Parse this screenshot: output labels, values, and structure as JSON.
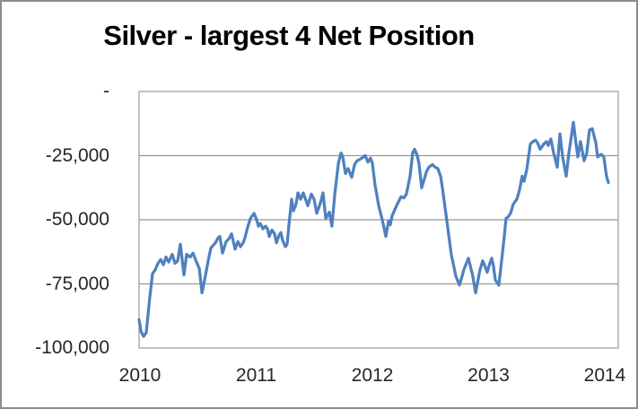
{
  "chart_data": {
    "type": "line",
    "title": "Silver - largest 4 Net Position",
    "xlabel": "",
    "ylabel": "",
    "x_ticks": [
      "2010",
      "2011",
      "2012",
      "2013",
      "2014"
    ],
    "x_tick_values": [
      2010,
      2011,
      2012,
      2013,
      2014
    ],
    "y_ticks": [
      "-",
      "-25,000",
      "-50,000",
      "-75,000",
      "-100,000"
    ],
    "y_tick_values": [
      0,
      -25000,
      -50000,
      -75000,
      -100000
    ],
    "x_range": [
      2009.992,
      2014.116
    ],
    "y_range": [
      -100000,
      0
    ],
    "grid": "horizontal",
    "legend": "none",
    "colors": {
      "line": "#4F81BD",
      "gridline": "#999999",
      "frame": "#8c8c8c",
      "text": "#262626",
      "title": "#000000"
    },
    "series": [
      {
        "name": "Largest 4 net position",
        "points": [
          [
            2009.992,
            -89000
          ],
          [
            2010.008,
            -93500
          ],
          [
            2010.031,
            -95500
          ],
          [
            2010.054,
            -94000
          ],
          [
            2010.085,
            -80000
          ],
          [
            2010.108,
            -71000
          ],
          [
            2010.131,
            -69500
          ],
          [
            2010.154,
            -67000
          ],
          [
            2010.178,
            -65500
          ],
          [
            2010.201,
            -67500
          ],
          [
            2010.224,
            -64500
          ],
          [
            2010.247,
            -66500
          ],
          [
            2010.278,
            -63500
          ],
          [
            2010.301,
            -67000
          ],
          [
            2010.324,
            -66000
          ],
          [
            2010.347,
            -59500
          ],
          [
            2010.378,
            -71500
          ],
          [
            2010.401,
            -63500
          ],
          [
            2010.432,
            -64500
          ],
          [
            2010.456,
            -63000
          ],
          [
            2010.486,
            -66500
          ],
          [
            2010.51,
            -69000
          ],
          [
            2010.533,
            -78500
          ],
          [
            2010.556,
            -73500
          ],
          [
            2010.587,
            -66000
          ],
          [
            2010.61,
            -61000
          ],
          [
            2010.649,
            -59000
          ],
          [
            2010.672,
            -57000
          ],
          [
            2010.687,
            -56500
          ],
          [
            2010.71,
            -63000
          ],
          [
            2010.741,
            -58500
          ],
          [
            2010.764,
            -57500
          ],
          [
            2010.788,
            -55500
          ],
          [
            2010.818,
            -61500
          ],
          [
            2010.842,
            -58500
          ],
          [
            2010.865,
            -60500
          ],
          [
            2010.888,
            -59000
          ],
          [
            2010.903,
            -57000
          ],
          [
            2010.926,
            -53000
          ],
          [
            2010.95,
            -49500
          ],
          [
            2010.981,
            -47500
          ],
          [
            2011.004,
            -50000
          ],
          [
            2011.019,
            -52500
          ],
          [
            2011.035,
            -51500
          ],
          [
            2011.058,
            -53500
          ],
          [
            2011.081,
            -52500
          ],
          [
            2011.096,
            -53500
          ],
          [
            2011.112,
            -56500
          ],
          [
            2011.135,
            -54000
          ],
          [
            2011.158,
            -55500
          ],
          [
            2011.174,
            -59000
          ],
          [
            2011.197,
            -56000
          ],
          [
            2011.212,
            -55000
          ],
          [
            2011.227,
            -58000
          ],
          [
            2011.251,
            -60500
          ],
          [
            2011.266,
            -59500
          ],
          [
            2011.282,
            -52000
          ],
          [
            2011.305,
            -42000
          ],
          [
            2011.32,
            -46500
          ],
          [
            2011.343,
            -44000
          ],
          [
            2011.359,
            -39500
          ],
          [
            2011.382,
            -42000
          ],
          [
            2011.405,
            -39500
          ],
          [
            2011.421,
            -41500
          ],
          [
            2011.444,
            -44500
          ],
          [
            2011.475,
            -40000
          ],
          [
            2011.498,
            -42000
          ],
          [
            2011.521,
            -47500
          ],
          [
            2011.552,
            -43500
          ],
          [
            2011.575,
            -39500
          ],
          [
            2011.598,
            -49500
          ],
          [
            2011.629,
            -47000
          ],
          [
            2011.652,
            -52500
          ],
          [
            2011.676,
            -40000
          ],
          [
            2011.707,
            -28000
          ],
          [
            2011.73,
            -24000
          ],
          [
            2011.745,
            -25500
          ],
          [
            2011.768,
            -32000
          ],
          [
            2011.791,
            -30000
          ],
          [
            2011.822,
            -33500
          ],
          [
            2011.846,
            -28500
          ],
          [
            2011.869,
            -27000
          ],
          [
            2011.892,
            -26500
          ],
          [
            2011.907,
            -26000
          ],
          [
            2011.938,
            -25000
          ],
          [
            2011.961,
            -27500
          ],
          [
            2011.984,
            -26000
          ],
          [
            2012.0,
            -28000
          ],
          [
            2012.023,
            -36500
          ],
          [
            2012.054,
            -44500
          ],
          [
            2012.085,
            -50000
          ],
          [
            2012.116,
            -56500
          ],
          [
            2012.139,
            -50500
          ],
          [
            2012.154,
            -52000
          ],
          [
            2012.17,
            -48500
          ],
          [
            2012.208,
            -44500
          ],
          [
            2012.247,
            -41000
          ],
          [
            2012.27,
            -41500
          ],
          [
            2012.293,
            -40000
          ],
          [
            2012.324,
            -33000
          ],
          [
            2012.347,
            -24000
          ],
          [
            2012.363,
            -22500
          ],
          [
            2012.386,
            -25000
          ],
          [
            2012.401,
            -28000
          ],
          [
            2012.424,
            -37500
          ],
          [
            2012.448,
            -34000
          ],
          [
            2012.463,
            -31500
          ],
          [
            2012.486,
            -29500
          ],
          [
            2012.517,
            -28500
          ],
          [
            2012.54,
            -29500
          ],
          [
            2012.563,
            -30000
          ],
          [
            2012.587,
            -33000
          ],
          [
            2012.602,
            -37500
          ],
          [
            2012.641,
            -50500
          ],
          [
            2012.679,
            -63500
          ],
          [
            2012.718,
            -72000
          ],
          [
            2012.749,
            -75500
          ],
          [
            2012.772,
            -72000
          ],
          [
            2012.787,
            -69500
          ],
          [
            2012.826,
            -65000
          ],
          [
            2012.864,
            -72000
          ],
          [
            2012.888,
            -78500
          ],
          [
            2012.911,
            -73000
          ],
          [
            2012.926,
            -69500
          ],
          [
            2012.949,
            -66000
          ],
          [
            2012.972,
            -68500
          ],
          [
            2012.988,
            -70500
          ],
          [
            2013.011,
            -67000
          ],
          [
            2013.027,
            -65000
          ],
          [
            2013.042,
            -68000
          ],
          [
            2013.058,
            -73500
          ],
          [
            2013.088,
            -75500
          ],
          [
            2013.112,
            -66000
          ],
          [
            2013.135,
            -56500
          ],
          [
            2013.15,
            -49500
          ],
          [
            2013.166,
            -49000
          ],
          [
            2013.189,
            -47500
          ],
          [
            2013.212,
            -44000
          ],
          [
            2013.243,
            -42000
          ],
          [
            2013.266,
            -38500
          ],
          [
            2013.289,
            -33000
          ],
          [
            2013.305,
            -35000
          ],
          [
            2013.328,
            -30500
          ],
          [
            2013.359,
            -20500
          ],
          [
            2013.382,
            -19500
          ],
          [
            2013.405,
            -19000
          ],
          [
            2013.421,
            -20000
          ],
          [
            2013.444,
            -22500
          ],
          [
            2013.475,
            -20500
          ],
          [
            2013.498,
            -19500
          ],
          [
            2013.513,
            -21000
          ],
          [
            2013.536,
            -18500
          ],
          [
            2013.56,
            -24000
          ],
          [
            2013.591,
            -29500
          ],
          [
            2013.614,
            -16500
          ],
          [
            2013.637,
            -25500
          ],
          [
            2013.668,
            -33000
          ],
          [
            2013.691,
            -24000
          ],
          [
            2013.73,
            -12000
          ],
          [
            2013.753,
            -20500
          ],
          [
            2013.768,
            -25500
          ],
          [
            2013.791,
            -19500
          ],
          [
            2013.822,
            -27000
          ],
          [
            2013.845,
            -24000
          ],
          [
            2013.868,
            -15000
          ],
          [
            2013.892,
            -14500
          ],
          [
            2013.923,
            -20000
          ],
          [
            2013.938,
            -25500
          ],
          [
            2013.969,
            -24500
          ],
          [
            2013.992,
            -25500
          ],
          [
            2014.015,
            -33000
          ],
          [
            2014.031,
            -35500
          ]
        ]
      }
    ]
  }
}
